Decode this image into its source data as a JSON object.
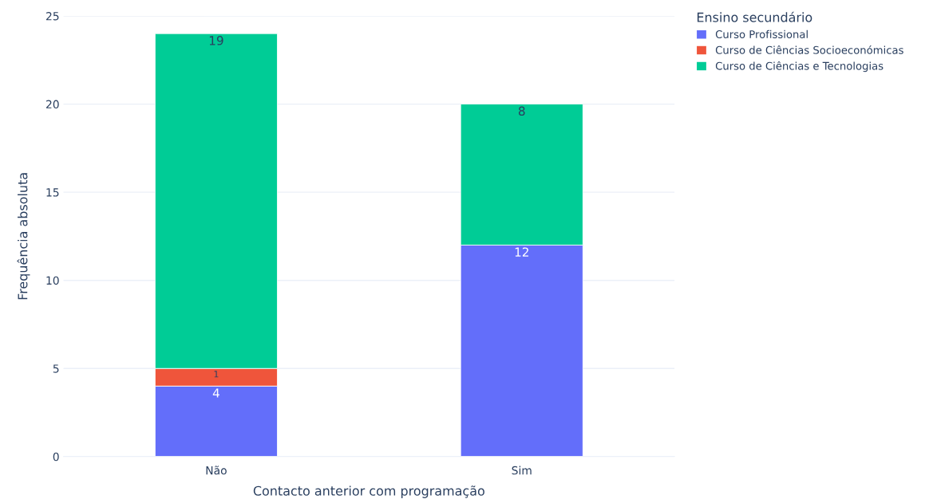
{
  "chart_data": {
    "type": "bar",
    "stacked": true,
    "xlabel": "Contacto anterior com programação",
    "ylabel": "Frequência absoluta",
    "legend_title": "Ensino secundário",
    "categories": [
      "Não",
      "Sim"
    ],
    "series": [
      {
        "name": "Curso Profissional",
        "color": "#636efa",
        "values": [
          4,
          12
        ]
      },
      {
        "name": "Curso de Ciências Socioeconómicas",
        "color": "#ef553b",
        "values": [
          1,
          null
        ]
      },
      {
        "name": "Curso de Ciências e Tecnologias",
        "color": "#00cc96",
        "values": [
          19,
          8
        ]
      }
    ],
    "ylim": [
      0,
      25
    ],
    "yticks": [
      0,
      5,
      10,
      15,
      20,
      25
    ],
    "grid": "y",
    "legend": "top right",
    "data_labels": true
  }
}
